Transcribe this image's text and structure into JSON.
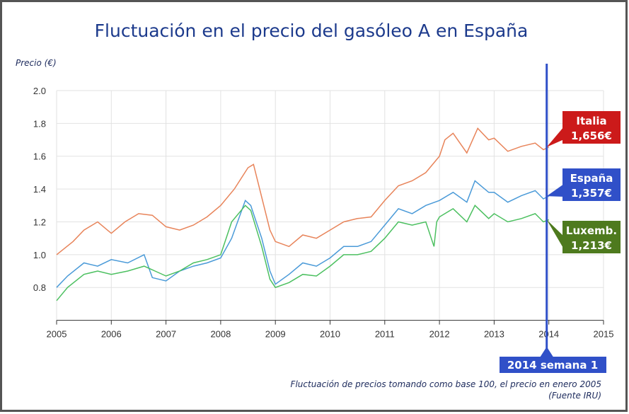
{
  "chart_data": {
    "type": "line",
    "title": "Fluctuación en el precio del gasóleo A en España",
    "ylabel": "Precio (€)",
    "xlabel": "",
    "xlim": [
      2005,
      2015
    ],
    "ylim": [
      0.6,
      2.0
    ],
    "x_ticks": [
      "2005",
      "2006",
      "2007",
      "2008",
      "2009",
      "2010",
      "2011",
      "2012",
      "2013",
      "2014",
      "2015"
    ],
    "y_ticks": [
      "2.0",
      "1.8",
      "1.6",
      "1.4",
      "1.2",
      "1.0",
      "0.8"
    ],
    "grid": true,
    "series": [
      {
        "name": "Italia",
        "color": "#e8845a",
        "end_label": "1,656€",
        "label_color": "#cc1a1a",
        "x": [
          2005,
          2005.3,
          2005.5,
          2005.75,
          2006,
          2006.25,
          2006.5,
          2006.75,
          2007,
          2007.25,
          2007.5,
          2007.75,
          2008,
          2008.25,
          2008.5,
          2008.6,
          2008.75,
          2008.9,
          2009,
          2009.25,
          2009.5,
          2009.75,
          2010,
          2010.25,
          2010.5,
          2010.75,
          2011,
          2011.25,
          2011.5,
          2011.75,
          2012,
          2012.1,
          2012.25,
          2012.5,
          2012.7,
          2012.9,
          2013,
          2013.25,
          2013.5,
          2013.75,
          2013.9,
          2014
        ],
        "y": [
          1.0,
          1.08,
          1.15,
          1.2,
          1.13,
          1.2,
          1.25,
          1.24,
          1.17,
          1.15,
          1.18,
          1.23,
          1.3,
          1.4,
          1.53,
          1.55,
          1.35,
          1.15,
          1.08,
          1.05,
          1.12,
          1.1,
          1.15,
          1.2,
          1.22,
          1.23,
          1.33,
          1.42,
          1.45,
          1.5,
          1.6,
          1.7,
          1.74,
          1.62,
          1.77,
          1.7,
          1.71,
          1.63,
          1.66,
          1.68,
          1.64,
          1.656
        ]
      },
      {
        "name": "España",
        "color": "#4a9ad8",
        "end_label": "1,357€",
        "label_color": "#3050c8",
        "x": [
          2005,
          2005.2,
          2005.5,
          2005.75,
          2006,
          2006.3,
          2006.6,
          2006.75,
          2007,
          2007.25,
          2007.5,
          2007.75,
          2008,
          2008.2,
          2008.45,
          2008.55,
          2008.75,
          2008.9,
          2009,
          2009.25,
          2009.5,
          2009.75,
          2010,
          2010.25,
          2010.5,
          2010.75,
          2011,
          2011.25,
          2011.5,
          2011.75,
          2012,
          2012.25,
          2012.5,
          2012.65,
          2012.9,
          2013,
          2013.25,
          2013.5,
          2013.75,
          2013.9,
          2014
        ],
        "y": [
          0.8,
          0.87,
          0.95,
          0.93,
          0.97,
          0.95,
          1.0,
          0.86,
          0.84,
          0.9,
          0.93,
          0.95,
          0.98,
          1.1,
          1.33,
          1.3,
          1.1,
          0.9,
          0.82,
          0.88,
          0.95,
          0.93,
          0.98,
          1.05,
          1.05,
          1.08,
          1.18,
          1.28,
          1.25,
          1.3,
          1.33,
          1.38,
          1.32,
          1.45,
          1.38,
          1.38,
          1.32,
          1.36,
          1.39,
          1.34,
          1.357
        ]
      },
      {
        "name": "Luxemb.",
        "color": "#4cc060",
        "end_label": "1,213€",
        "label_color": "#4e7a1e",
        "x": [
          2005,
          2005.2,
          2005.5,
          2005.75,
          2006,
          2006.3,
          2006.6,
          2006.8,
          2007,
          2007.25,
          2007.5,
          2007.75,
          2008,
          2008.2,
          2008.45,
          2008.55,
          2008.75,
          2008.9,
          2009,
          2009.25,
          2009.5,
          2009.75,
          2010,
          2010.25,
          2010.5,
          2010.75,
          2011,
          2011.25,
          2011.5,
          2011.75,
          2011.9,
          2011.95,
          2012,
          2012.25,
          2012.5,
          2012.65,
          2012.9,
          2013,
          2013.25,
          2013.5,
          2013.75,
          2013.9,
          2014
        ],
        "y": [
          0.72,
          0.8,
          0.88,
          0.9,
          0.88,
          0.9,
          0.93,
          0.9,
          0.87,
          0.9,
          0.95,
          0.97,
          1.0,
          1.2,
          1.3,
          1.27,
          1.05,
          0.85,
          0.8,
          0.83,
          0.88,
          0.87,
          0.93,
          1.0,
          1.0,
          1.02,
          1.1,
          1.2,
          1.18,
          1.2,
          1.05,
          1.2,
          1.23,
          1.28,
          1.2,
          1.3,
          1.22,
          1.25,
          1.2,
          1.22,
          1.25,
          1.2,
          1.213
        ]
      }
    ],
    "marker": {
      "x": 2014,
      "label": "2014 semana 1",
      "color": "#3050c8"
    },
    "annotations": [
      "Fluctuación de precios tomando como base 100, el precio en enero 2005",
      "(Fuente IRU)"
    ]
  }
}
